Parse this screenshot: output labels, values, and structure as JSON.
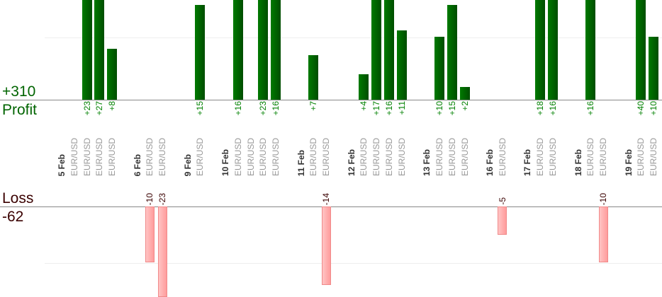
{
  "summary": {
    "profit_total": "+310",
    "profit_label": "Profit",
    "loss_label": "Loss",
    "loss_total": "-62"
  },
  "colors": {
    "profit": "#006400",
    "loss": "#ff9c9c",
    "loss_text": "#3a0000",
    "date_text": "#333333",
    "pair_text": "#999999"
  },
  "chart_data": {
    "type": "bar",
    "grid": true,
    "profit_gridline": 10,
    "loss_gridline": -10,
    "days": [
      {
        "date": "5 Feb",
        "trades": [
          {
            "pair": "EUR/USD",
            "value": 0
          },
          {
            "pair": "EUR/USD",
            "value": 23
          },
          {
            "pair": "EUR/USD",
            "value": 27
          },
          {
            "pair": "EUR/USD",
            "value": 8
          }
        ]
      },
      {
        "date": "6 Feb",
        "trades": [
          {
            "pair": "EUR/USD",
            "value": -10
          },
          {
            "pair": "EUR/USD",
            "value": -23
          }
        ]
      },
      {
        "date": "9 Feb",
        "trades": [
          {
            "pair": "EUR/USD",
            "value": 15
          }
        ]
      },
      {
        "date": "10 Feb",
        "trades": [
          {
            "pair": "EUR/USD",
            "value": 16
          },
          {
            "pair": "EUR/USD",
            "value": 0
          },
          {
            "pair": "EUR/USD",
            "value": 23
          },
          {
            "pair": "EUR/USD",
            "value": 16
          }
        ]
      },
      {
        "date": "11 Feb",
        "trades": [
          {
            "pair": "EUR/USD",
            "value": 7
          },
          {
            "pair": "EUR/USD",
            "value": -14
          }
        ]
      },
      {
        "date": "12 Feb",
        "trades": [
          {
            "pair": "EUR/USD",
            "value": 4
          },
          {
            "pair": "EUR/USD",
            "value": 17
          },
          {
            "pair": "EUR/USD",
            "value": 16
          },
          {
            "pair": "EUR/USD",
            "value": 11
          }
        ]
      },
      {
        "date": "13 Feb",
        "trades": [
          {
            "pair": "EUR/USD",
            "value": 10
          },
          {
            "pair": "EUR/USD",
            "value": 15
          },
          {
            "pair": "EUR/USD",
            "value": 2
          }
        ]
      },
      {
        "date": "16 Feb",
        "trades": [
          {
            "pair": "EUR/USD",
            "value": -5
          }
        ]
      },
      {
        "date": "17 Feb",
        "trades": [
          {
            "pair": "EUR/USD",
            "value": 18
          },
          {
            "pair": "EUR/USD",
            "value": 16
          }
        ]
      },
      {
        "date": "18 Feb",
        "trades": [
          {
            "pair": "EUR/USD",
            "value": 16
          },
          {
            "pair": "EUR/USD",
            "value": -10
          }
        ]
      },
      {
        "date": "19 Feb",
        "trades": [
          {
            "pair": "EUR/USD",
            "value": 40
          },
          {
            "pair": "EUR/USD",
            "value": 10
          }
        ]
      }
    ]
  }
}
